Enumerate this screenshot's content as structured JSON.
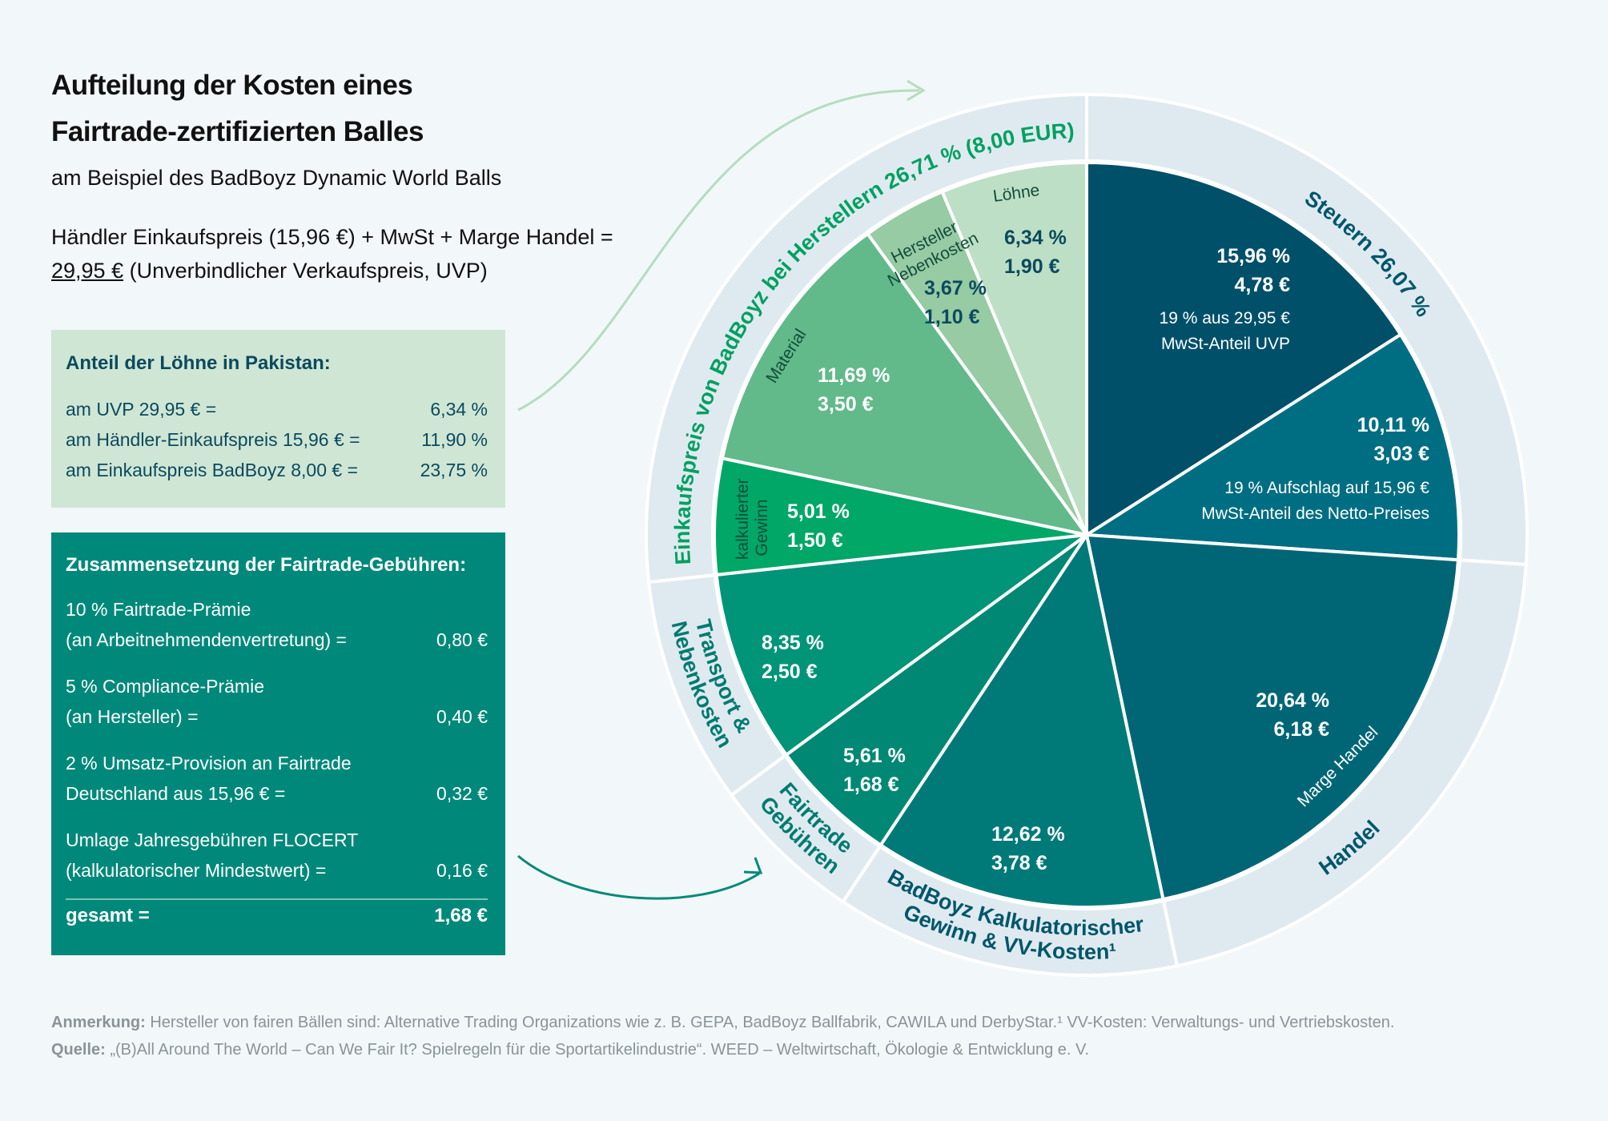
{
  "header": {
    "title_line1": "Aufteilung der Kosten eines",
    "title_line2": "Fairtrade-zertifizierten Balles",
    "subtitle": "am Beispiel des BadBoyz Dynamic World Balls",
    "formula_line1": "Händler Einkaufspreis (15,96 €) + MwSt + Marge Handel =",
    "formula_price": "29,95 €",
    "formula_line2_rest": " (Unverbindlicher Verkaufspreis, UVP)"
  },
  "wages_box": {
    "title": "Anteil der Löhne in Pakistan:",
    "rows": [
      {
        "label": "am UVP 29,95 € =",
        "value": "6,34 %"
      },
      {
        "label": "am Händler-Einkaufspreis 15,96 € =",
        "value": "11,90 %"
      },
      {
        "label": "am Einkaufspreis BadBoyz 8,00 € =",
        "value": "23,75 %"
      }
    ]
  },
  "fees_box": {
    "title": "Zusammensetzung der Fairtrade-Gebühren:",
    "rows": [
      {
        "line1": "10 % Fairtrade-Prämie",
        "line2": "(an Arbeitnehmendenvertretung) =",
        "value": "0,80 €"
      },
      {
        "line1": "5 % Compliance-Prämie",
        "line2": "(an Hersteller) =",
        "value": "0,40 €"
      },
      {
        "line1": "2 % Umsatz-Provision an Fairtrade",
        "line2": "Deutschland aus 15,96 € =",
        "value": "0,32 €"
      },
      {
        "line1": "Umlage Jahresgebühren FLOCERT",
        "line2": "(kalkulatorischer Mindestwert) =",
        "value": "0,16 €"
      }
    ],
    "total_label": "gesamt =",
    "total_value": "1,68 €"
  },
  "footer": {
    "note_label": "Anmerkung:",
    "note_text": " Hersteller von fairen Bällen sind: Alternative Trading Organizations wie z. B. GEPA, BadBoyz Ballfabrik, CAWILA und DerbyStar.¹ VV-Kosten: Verwaltungs- und Vertriebskosten.",
    "source_label": "Quelle:",
    "source_text": " „(B)All Around The World – Can We Fair It? Spielregeln für die Sportartikelindustrie“. WEED – Weltwirtschaft, Ökologie & Entwicklung e. V."
  },
  "chart_data": {
    "type": "pie",
    "start": "top, clockwise",
    "slices": [
      {
        "percent_value": 15.96,
        "percent": "15,96 %",
        "euro": "4,78 €",
        "note1": "19 % aus 29,95 €",
        "note2": "MwSt-Anteil UVP",
        "group": "Steuern",
        "color": "#00506a"
      },
      {
        "percent_value": 10.11,
        "percent": "10,11 %",
        "euro": "3,03 €",
        "note1": "19 % Aufschlag auf 15,96 €",
        "note2": "MwSt-Anteil des Netto-Preises",
        "group": "Steuern",
        "color": "#006e82"
      },
      {
        "percent_value": 20.64,
        "percent": "20,64 %",
        "euro": "6,18 €",
        "label": "Marge Handel",
        "group": "Handel",
        "color": "#006676"
      },
      {
        "percent_value": 12.62,
        "percent": "12,62 %",
        "euro": "3,78 €",
        "group": "BadBoyz",
        "color": "#007a78"
      },
      {
        "percent_value": 5.61,
        "percent": "5,61 %",
        "euro": "1,68 €",
        "group": "Fairtrade",
        "color": "#008874"
      },
      {
        "percent_value": 8.35,
        "percent": "8,35 %",
        "euro": "2,50 €",
        "group": "Transport",
        "color": "#009478"
      },
      {
        "percent_value": 5.01,
        "percent": "5,01 %",
        "euro": "1,50 €",
        "label": "kalkulierter Gewinn",
        "group": "Einkauf",
        "color": "#00a766"
      },
      {
        "percent_value": 11.69,
        "percent": "11,69 %",
        "euro": "3,50 €",
        "label": "Material",
        "group": "Einkauf",
        "color": "#62b98a"
      },
      {
        "percent_value": 3.67,
        "percent": "3,67 %",
        "euro": "1,10 €",
        "label": "Hersteller Nebenkosten",
        "group": "Einkauf",
        "color": "#96cba3"
      },
      {
        "percent_value": 6.34,
        "percent": "6,34 %",
        "euro": "1,90 €",
        "label": "Löhne",
        "group": "Einkauf",
        "color": "#bddfc5"
      }
    ],
    "groups": [
      {
        "key": "Steuern",
        "label": "Steuern 26,07 %",
        "percent_value": 26.07,
        "color": "#00566b"
      },
      {
        "key": "Handel",
        "label": "Handel",
        "percent_value": 20.64,
        "color": "#00566b"
      },
      {
        "key": "BadBoyz",
        "label": "BadBoyz Kalkulatorischer",
        "label2": "Gewinn & VV-Kosten¹",
        "percent_value": 12.62,
        "color": "#00566b"
      },
      {
        "key": "Fairtrade",
        "label": "Fairtrade",
        "label2": "Gebühren",
        "percent_value": 5.61,
        "color": "#007a70"
      },
      {
        "key": "Transport",
        "label": "Transport &",
        "label2": "Nebenkosten",
        "percent_value": 8.35,
        "color": "#007a70"
      },
      {
        "key": "Einkauf",
        "label": "Einkaufspreis von BadBoyz bei Herstellern 26,71 % (8,00 EUR)",
        "percent_value": 26.71,
        "color": "#00a060"
      }
    ],
    "ring_color": "#dfeaf0",
    "arrow_colors": {
      "wages": "#b5dcc0",
      "fees": "#00897a"
    }
  }
}
